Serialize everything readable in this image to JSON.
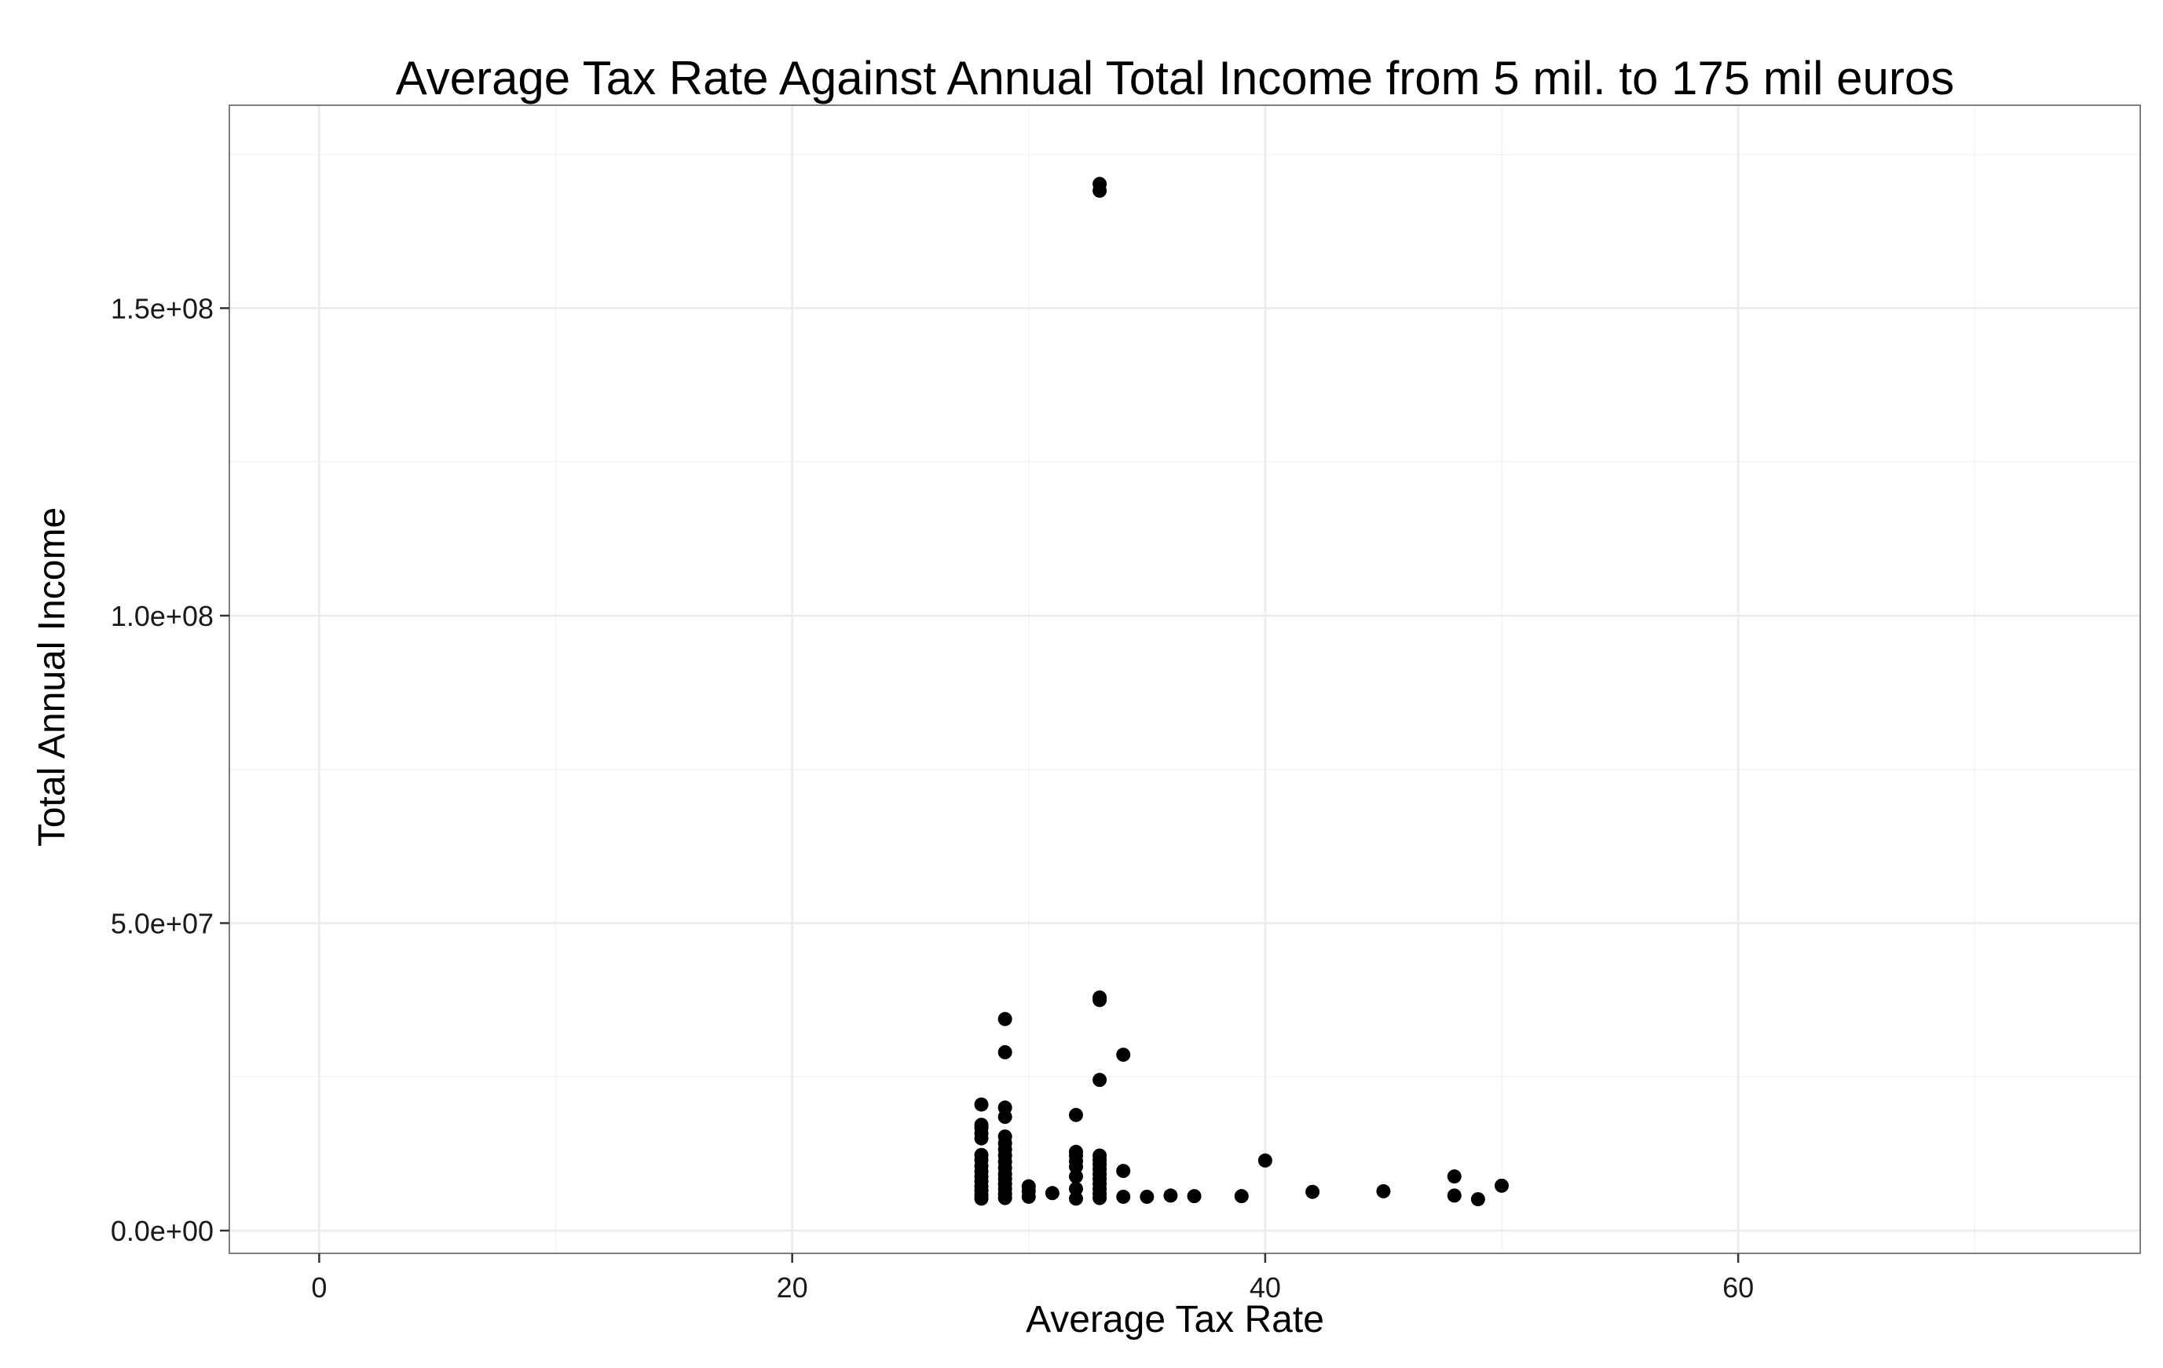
{
  "chart_data": {
    "type": "scatter",
    "title": "Average Tax Rate Against Annual Total Income from 5 mil. to 175 mil euros",
    "xlabel": "Average Tax Rate",
    "ylabel": "Total Annual Income",
    "xlim": [
      -3.8,
      77
    ],
    "ylim": [
      -3700000,
      183000000
    ],
    "x_ticks": [
      0,
      20,
      40,
      60
    ],
    "x_tick_labels": [
      "0",
      "20",
      "40",
      "60"
    ],
    "x_minor_ticks": [
      10,
      30,
      50,
      70
    ],
    "y_ticks": [
      0,
      50000000,
      100000000,
      150000000
    ],
    "y_tick_labels": [
      "0.0e+00",
      "5.0e+07",
      "1.0e+08",
      "1.5e+08"
    ],
    "y_minor_ticks": [
      25000000,
      75000000,
      125000000,
      175000000
    ],
    "grid": true,
    "point_color": "#000000",
    "series": [
      {
        "x": [
          28,
          28,
          28,
          28,
          28,
          28,
          28,
          28,
          28,
          28,
          28,
          28,
          28,
          28,
          28,
          29,
          29,
          29,
          29,
          29,
          29,
          29,
          29,
          29,
          29,
          29,
          29,
          29,
          29,
          29,
          29,
          30,
          30,
          30,
          31,
          32,
          32,
          32,
          32,
          32,
          32,
          32,
          32,
          33,
          33,
          33,
          33,
          33,
          33,
          33,
          33,
          33,
          33,
          33,
          33,
          33,
          33,
          33,
          34,
          34,
          34,
          35,
          36,
          37,
          39,
          40,
          42,
          45,
          48,
          48,
          49,
          50
        ],
        "y": [
          5200000,
          5800000,
          6500000,
          7200000,
          8000000,
          8800000,
          9600000,
          10500000,
          11500000,
          12300000,
          15000000,
          15800000,
          16700000,
          17200000,
          20500000,
          5300000,
          6000000,
          6800000,
          7600000,
          8400000,
          9200000,
          10200000,
          11200000,
          12200000,
          13200000,
          14200000,
          15300000,
          18500000,
          20000000,
          29000000,
          34400000,
          5500000,
          6400000,
          7200000,
          6100000,
          5200000,
          6800000,
          8800000,
          10400000,
          11300000,
          12200000,
          12800000,
          18800000,
          5300000,
          6000000,
          6800000,
          7600000,
          8400000,
          9200000,
          10000000,
          10800000,
          11500000,
          12200000,
          24500000,
          37500000,
          37900000,
          169100000,
          170200000,
          5500000,
          9700000,
          28600000,
          5500000,
          5700000,
          5600000,
          5600000,
          11400000,
          6300000,
          6400000,
          5700000,
          8800000,
          5100000,
          7300000
        ]
      }
    ]
  }
}
